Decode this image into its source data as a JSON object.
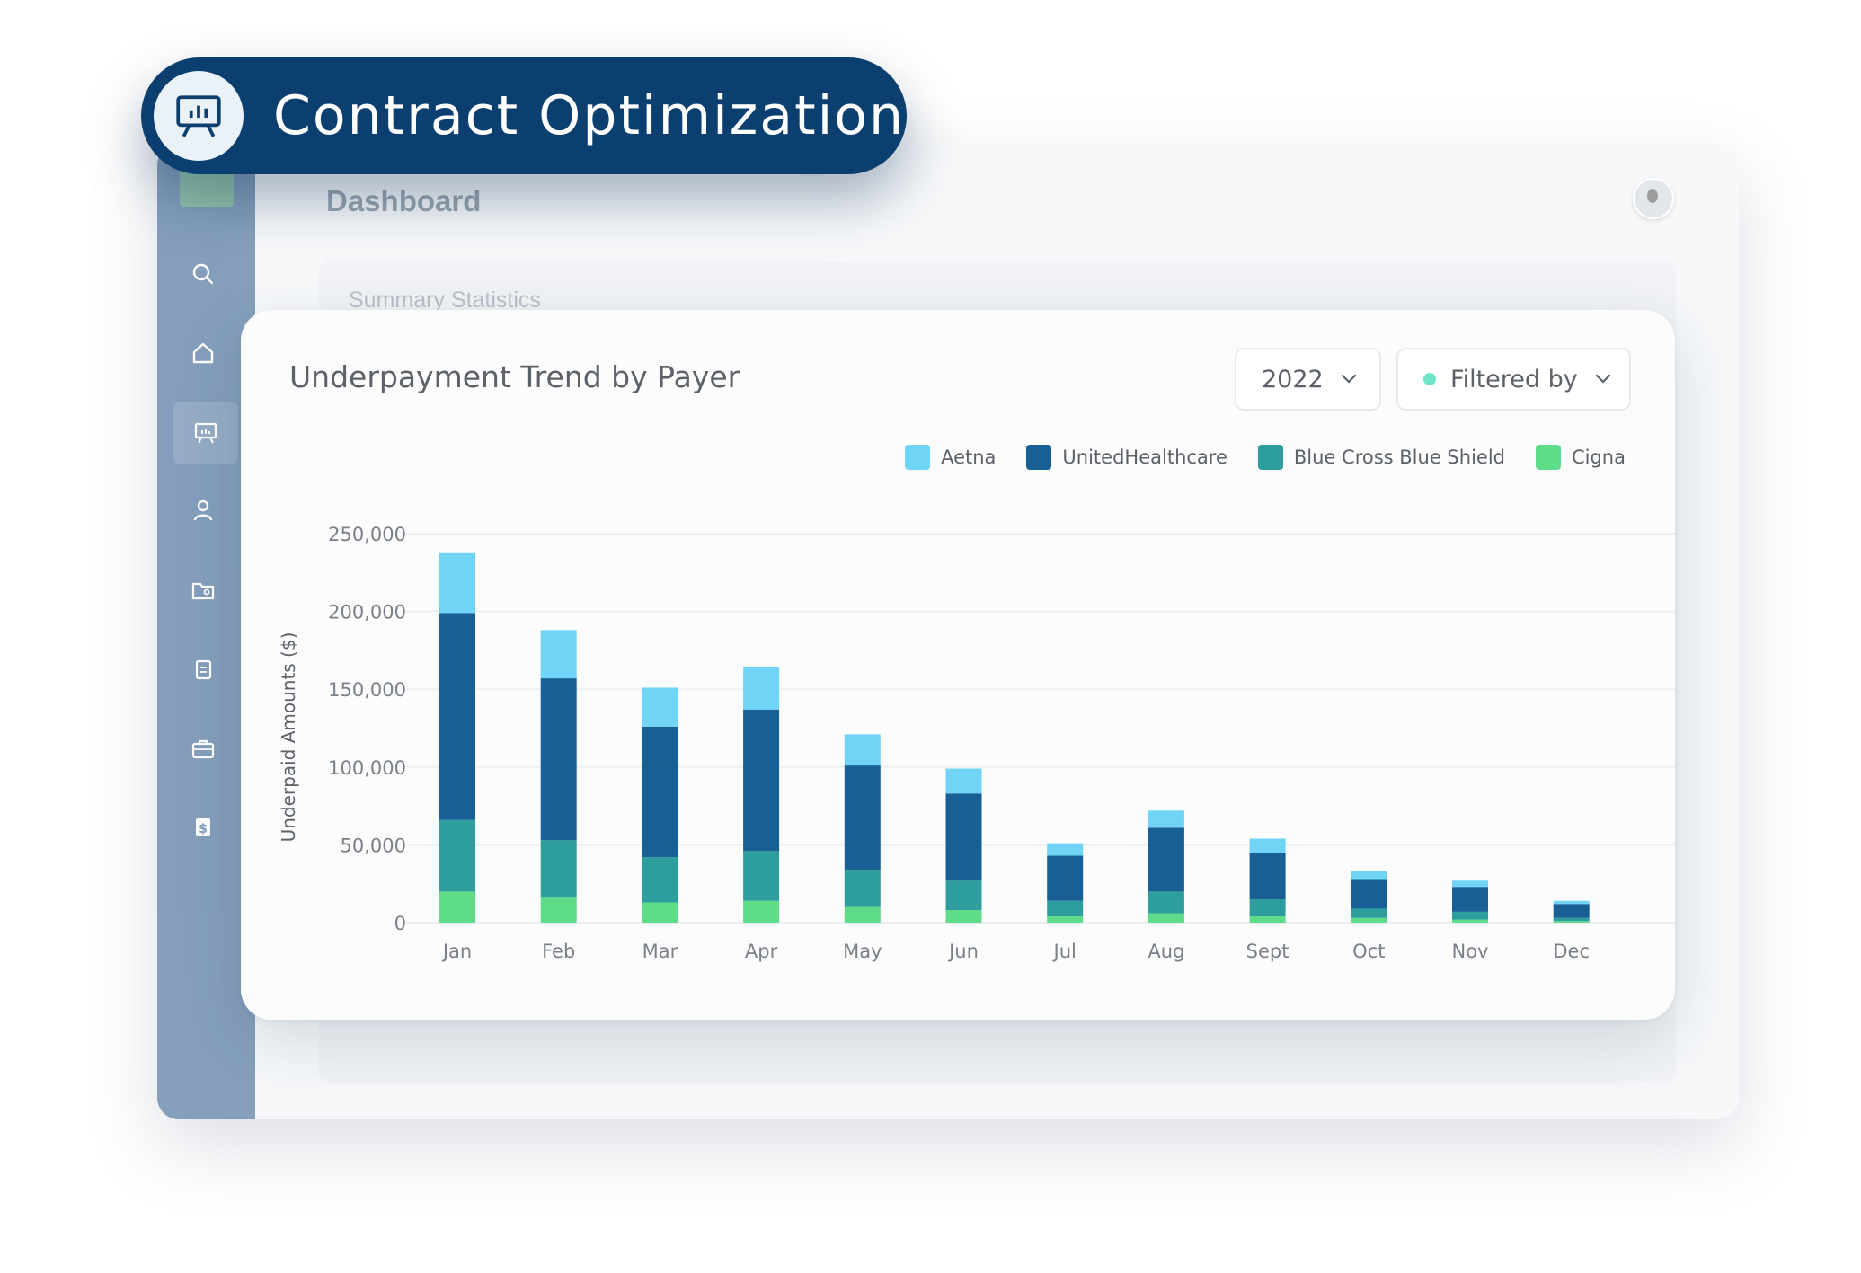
{
  "badge": {
    "title": "Contract Optimization",
    "icon": "presentation-chart-icon"
  },
  "background": {
    "page_title": "Dashboard",
    "panel_title": "Summary Statistics",
    "sidebar_icons": [
      "search-icon",
      "home-icon",
      "presentation-chart-icon",
      "user-icon",
      "folder-user-icon",
      "document-copy-icon",
      "briefcase-icon",
      "dollar-document-icon"
    ]
  },
  "card": {
    "year_value": "2022",
    "filter_label": "Filtered by"
  },
  "colors": {
    "Aetna": "#6fd4f6",
    "UnitedHealthcare": "#175f94",
    "Blue Cross Blue Shield": "#2d9d9d",
    "Cigna": "#5fdc87"
  },
  "chart_data": {
    "type": "bar",
    "stacked": true,
    "title": "Underpayment Trend by Payer",
    "xlabel": "",
    "ylabel": "Underpaid Amounts ($)",
    "ylim": [
      0,
      250000
    ],
    "yticks": [
      "0",
      "50,000",
      "100,000",
      "150,000",
      "200,000",
      "250,000"
    ],
    "grid": true,
    "legend_position": "top-right",
    "categories": [
      "Jan",
      "Feb",
      "Mar",
      "Apr",
      "May",
      "Jun",
      "Jul",
      "Aug",
      "Sept",
      "Oct",
      "Nov",
      "Dec"
    ],
    "series": [
      {
        "name": "Aetna",
        "values": [
          39000,
          31000,
          25000,
          27000,
          20000,
          16000,
          8000,
          11000,
          9000,
          5000,
          4000,
          2000
        ]
      },
      {
        "name": "UnitedHealthcare",
        "values": [
          133000,
          104000,
          84000,
          91000,
          67000,
          56000,
          29000,
          41000,
          30000,
          19000,
          16000,
          9000
        ]
      },
      {
        "name": "Blue Cross Blue Shield",
        "values": [
          46000,
          37000,
          29000,
          32000,
          24000,
          19000,
          10000,
          14000,
          11000,
          6000,
          5000,
          2000
        ]
      },
      {
        "name": "Cigna",
        "values": [
          20000,
          16000,
          13000,
          14000,
          10000,
          8000,
          4000,
          6000,
          4000,
          3000,
          2000,
          1000
        ]
      }
    ]
  }
}
